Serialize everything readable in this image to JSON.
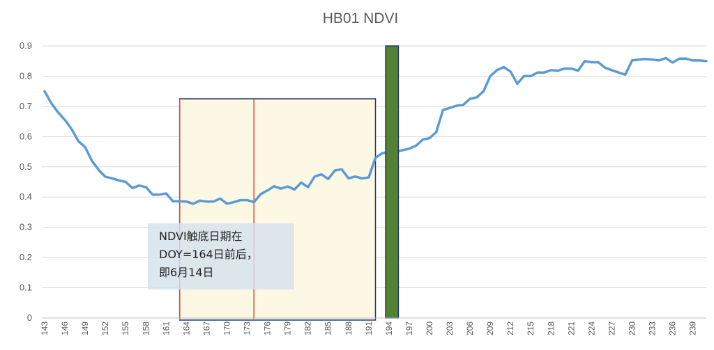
{
  "chart_data": {
    "type": "line",
    "title": "HB01 NDVI",
    "xlabel": "",
    "ylabel": "",
    "xlim": [
      143,
      241
    ],
    "ylim": [
      0,
      0.9
    ],
    "ytick_labels": [
      "0",
      "0.1",
      "0.2",
      "0.3",
      "0.4",
      "0.5",
      "0.6",
      "0.7",
      "0.8",
      "0.9"
    ],
    "yticks": [
      0,
      0.1,
      0.2,
      0.3,
      0.4,
      0.5,
      0.6,
      0.7,
      0.8,
      0.9
    ],
    "xticks": [
      143,
      146,
      149,
      152,
      155,
      158,
      161,
      164,
      167,
      170,
      173,
      176,
      179,
      182,
      185,
      188,
      191,
      194,
      197,
      200,
      203,
      206,
      209,
      212,
      215,
      218,
      221,
      224,
      227,
      230,
      233,
      236,
      239
    ],
    "xtick_labels": [
      "143",
      "146",
      "149",
      "152",
      "155",
      "158",
      "161",
      "164",
      "167",
      "170",
      "173",
      "176",
      "179",
      "182",
      "185",
      "188",
      "191",
      "194",
      "197",
      "200",
      "203",
      "206",
      "209",
      "212",
      "215",
      "218",
      "221",
      "224",
      "227",
      "230",
      "233",
      "236",
      "239"
    ],
    "grid": true,
    "series": [
      {
        "name": "",
        "color": "#5b9bd5",
        "x": [
          143,
          144,
          145,
          146,
          147,
          148,
          149,
          150,
          151,
          152,
          153,
          154,
          155,
          156,
          157,
          158,
          159,
          160,
          161,
          162,
          163,
          164,
          165,
          166,
          167,
          168,
          169,
          170,
          171,
          172,
          173,
          174,
          175,
          176,
          177,
          178,
          179,
          180,
          181,
          182,
          183,
          184,
          185,
          186,
          187,
          188,
          189,
          190,
          191,
          192,
          193,
          194,
          195,
          196,
          197,
          198,
          199,
          200,
          201,
          202,
          203,
          204,
          205,
          206,
          207,
          208,
          209,
          210,
          211,
          212,
          213,
          214,
          215,
          216,
          217,
          218,
          219,
          220,
          221,
          222,
          223,
          224,
          225,
          226,
          227,
          228,
          229,
          230,
          231,
          232,
          233,
          234,
          235,
          236,
          237,
          238,
          239,
          240,
          241
        ],
        "y": [
          0.75,
          0.71,
          0.68,
          0.655,
          0.625,
          0.585,
          0.565,
          0.52,
          0.49,
          0.467,
          0.462,
          0.455,
          0.45,
          0.43,
          0.438,
          0.433,
          0.408,
          0.408,
          0.412,
          0.386,
          0.386,
          0.385,
          0.378,
          0.388,
          0.385,
          0.385,
          0.395,
          0.378,
          0.383,
          0.39,
          0.39,
          0.383,
          0.41,
          0.422,
          0.436,
          0.428,
          0.435,
          0.425,
          0.448,
          0.433,
          0.468,
          0.475,
          0.46,
          0.488,
          0.492,
          0.462,
          0.468,
          0.462,
          0.465,
          0.53,
          0.545,
          0.55,
          0.55,
          0.555,
          0.56,
          0.57,
          0.59,
          0.595,
          0.615,
          0.688,
          0.695,
          0.702,
          0.705,
          0.725,
          0.73,
          0.75,
          0.8,
          0.82,
          0.83,
          0.815,
          0.775,
          0.8,
          0.8,
          0.812,
          0.812,
          0.82,
          0.818,
          0.825,
          0.825,
          0.818,
          0.85,
          0.846,
          0.846,
          0.828,
          0.82,
          0.812,
          0.805,
          0.852,
          0.855,
          0.857,
          0.855,
          0.852,
          0.86,
          0.845,
          0.858,
          0.858,
          0.852,
          0.852,
          0.85
        ]
      }
    ],
    "annotations": {
      "highlight_region": {
        "x": [
          163,
          192
        ],
        "fill": "#fdf8e4",
        "border": "#1f3864"
      },
      "red_lines": [
        {
          "x": 163,
          "color": "#e0453a"
        },
        {
          "x": 174,
          "color": "#e0453a"
        }
      ],
      "green_bar": {
        "x": [
          193.5,
          195.4
        ],
        "y": [
          0,
          0.9
        ],
        "fill": "#548235",
        "border": "#1f3864"
      },
      "note_lines": [
        "NDVI触底日期在",
        "DOY=164日前后，",
        "即6月14日"
      ]
    }
  }
}
